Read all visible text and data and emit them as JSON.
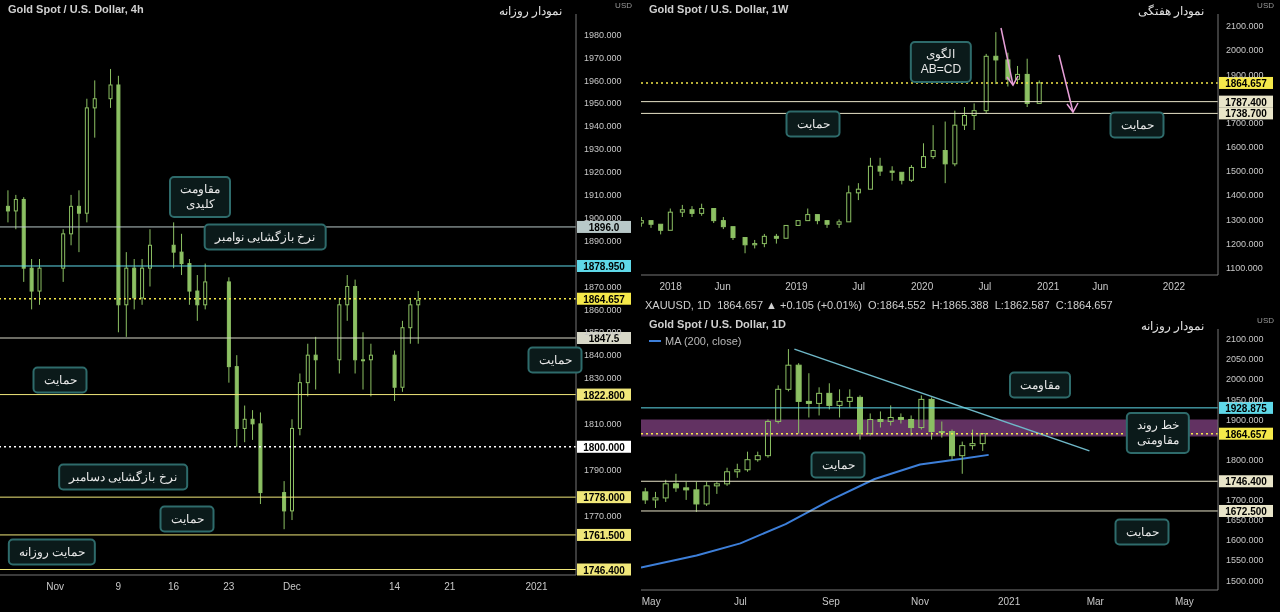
{
  "chart_data": [
    {
      "type": "candlestick",
      "title": "Gold Spot / U.S. Dollar, 4h",
      "ylabel": "USD",
      "xlim": [
        "2020-10-25",
        "2021-01-06"
      ],
      "ylim": [
        1744,
        1989
      ],
      "xticks": [
        {
          "value": "2020-11-01",
          "label": "Nov"
        },
        {
          "value": "2020-11-09",
          "label": "9"
        },
        {
          "value": "2020-11-16",
          "label": "16"
        },
        {
          "value": "2020-11-23",
          "label": "23"
        },
        {
          "value": "2020-12-01",
          "label": "Dec"
        },
        {
          "value": "2020-12-14",
          "label": "14"
        },
        {
          "value": "2020-12-21",
          "label": "21"
        },
        {
          "value": "2021",
          "label": "2021"
        }
      ],
      "yticks": [
        {
          "value": 1770,
          "label": "1770.000"
        },
        {
          "value": 1790,
          "label": "1790.000"
        },
        {
          "value": 1810,
          "label": "1810.000"
        },
        {
          "value": 1830,
          "label": "1830.000"
        },
        {
          "value": 1840,
          "label": "1840.000"
        },
        {
          "value": 1850,
          "label": "1850.000"
        },
        {
          "value": 1860,
          "label": "1860.000"
        },
        {
          "value": 1870,
          "label": "1870.000"
        },
        {
          "value": 1890,
          "label": "1890.000"
        },
        {
          "value": 1900,
          "label": "1900.000"
        },
        {
          "value": 1910,
          "label": "1910.000"
        },
        {
          "value": 1920,
          "label": "1920.000"
        },
        {
          "value": 1930,
          "label": "1930.000"
        },
        {
          "value": 1940,
          "label": "1940.000"
        },
        {
          "value": 1950,
          "label": "1950.000"
        },
        {
          "value": 1960,
          "label": "1960.000"
        },
        {
          "value": 1970,
          "label": "1970.000"
        },
        {
          "value": 1980,
          "label": "1980.000"
        }
      ],
      "series": [
        {
          "color": "#8cc063",
          "x": [
            "2020-10-26",
            "2020-10-27",
            "2020-10-28",
            "2020-10-29",
            "2020-10-30",
            "2020-11-02",
            "2020-11-03",
            "2020-11-04",
            "2020-11-05",
            "2020-11-06",
            "2020-11-08",
            "2020-11-09",
            "2020-11-10",
            "2020-11-11",
            "2020-11-12",
            "2020-11-13",
            "2020-11-16",
            "2020-11-17",
            "2020-11-18",
            "2020-11-19",
            "2020-11-20",
            "2020-11-23",
            "2020-11-24",
            "2020-11-25",
            "2020-11-26",
            "2020-11-27",
            "2020-11-30",
            "2020-12-01",
            "2020-12-02",
            "2020-12-03",
            "2020-12-04",
            "2020-12-07",
            "2020-12-08",
            "2020-12-09",
            "2020-12-10",
            "2020-12-11",
            "2020-12-14",
            "2020-12-15",
            "2020-12-16",
            "2020-12-17"
          ],
          "ohlc": [
            [
              1905,
              1912,
              1898,
              1903
            ],
            [
              1903,
              1910,
              1895,
              1908
            ],
            [
              1908,
              1909,
              1872,
              1878
            ],
            [
              1878,
              1882,
              1860,
              1868
            ],
            [
              1868,
              1882,
              1862,
              1878
            ],
            [
              1878,
              1895,
              1872,
              1893
            ],
            [
              1893,
              1910,
              1888,
              1905
            ],
            [
              1905,
              1912,
              1885,
              1902
            ],
            [
              1902,
              1952,
              1898,
              1948
            ],
            [
              1948,
              1960,
              1935,
              1952
            ],
            [
              1952,
              1965,
              1948,
              1958
            ],
            [
              1958,
              1962,
              1850,
              1862
            ],
            [
              1862,
              1885,
              1848,
              1878
            ],
            [
              1878,
              1882,
              1860,
              1865
            ],
            [
              1865,
              1882,
              1862,
              1878
            ],
            [
              1878,
              1895,
              1870,
              1888
            ],
            [
              1888,
              1898,
              1878,
              1885
            ],
            [
              1885,
              1893,
              1875,
              1880
            ],
            [
              1880,
              1882,
              1862,
              1868
            ],
            [
              1868,
              1875,
              1855,
              1862
            ],
            [
              1862,
              1880,
              1860,
              1872
            ],
            [
              1872,
              1874,
              1828,
              1835
            ],
            [
              1835,
              1840,
              1800,
              1808
            ],
            [
              1808,
              1818,
              1802,
              1812
            ],
            [
              1812,
              1816,
              1803,
              1810
            ],
            [
              1810,
              1815,
              1775,
              1780
            ],
            [
              1780,
              1785,
              1764,
              1772
            ],
            [
              1772,
              1812,
              1768,
              1808
            ],
            [
              1808,
              1832,
              1805,
              1828
            ],
            [
              1828,
              1845,
              1822,
              1840
            ],
            [
              1840,
              1848,
              1825,
              1838
            ],
            [
              1838,
              1865,
              1832,
              1862
            ],
            [
              1862,
              1875,
              1855,
              1870
            ],
            [
              1870,
              1873,
              1832,
              1838
            ],
            [
              1838,
              1850,
              1825,
              1838
            ],
            [
              1838,
              1845,
              1822,
              1840
            ],
            [
              1840,
              1842,
              1820,
              1826
            ],
            [
              1826,
              1855,
              1824,
              1852
            ],
            [
              1852,
              1865,
              1845,
              1862
            ],
            [
              1862,
              1868,
              1845,
              1864
            ]
          ]
        }
      ],
      "ref_lines": [
        {
          "axis": "y",
          "value": 1896.0,
          "label": "1896.0",
          "color": "#b8c8c8"
        },
        {
          "axis": "y",
          "value": 1878.95,
          "label": "1878.950",
          "color": "#5fd8e8"
        },
        {
          "axis": "y",
          "value": 1864.657,
          "label": "1864.657",
          "color": "#f5e94a",
          "line_style": "dotted"
        },
        {
          "axis": "y",
          "value": 1847.5,
          "label": "1847.5",
          "color": "#d8d8c8"
        },
        {
          "axis": "y",
          "value": 1822.8,
          "label": "1822.800",
          "color": "#f0e77a"
        },
        {
          "axis": "y",
          "value": 1800,
          "label": "1800.000",
          "color": "#ffffff",
          "line_style": "dotted"
        },
        {
          "axis": "y",
          "value": 1778,
          "label": "1778.000",
          "color": "#f0e77a"
        },
        {
          "axis": "y",
          "value": 1761.5,
          "label": "1761.500",
          "color": "#f0e77a"
        },
        {
          "axis": "y",
          "value": 1746.4,
          "label": "1746.400",
          "color": "#f0e77a"
        }
      ],
      "annotations": [
        "نمودار روزانه",
        "مقاومت\nکلیدی",
        "نرخ بازگشایی نوامبر",
        "حمایت",
        "حمایت",
        "نرخ بازگشایی دسامبر",
        "حمایت",
        "حمایت روزانه"
      ]
    },
    {
      "type": "candlestick",
      "title": "Gold Spot / U.S. Dollar, 1W",
      "ylabel": "USD",
      "xlim": [
        "2017-10-07",
        "2022-05-09"
      ],
      "ylim": [
        1070,
        2150
      ],
      "xticks": [
        {
          "value": "2018",
          "label": "2018"
        },
        {
          "value": "2018-06-01",
          "label": "Jun"
        },
        {
          "value": "2019",
          "label": "2019"
        },
        {
          "value": "2019-07-01",
          "label": "Jul"
        },
        {
          "value": "2020",
          "label": "2020"
        },
        {
          "value": "2020-07-01",
          "label": "Jul"
        },
        {
          "value": "2021",
          "label": "2021"
        },
        {
          "value": "2021-06-01",
          "label": "Jun"
        },
        {
          "value": "2022",
          "label": "2022"
        }
      ],
      "yticks": [
        {
          "value": 1100,
          "label": "1100.000"
        },
        {
          "value": 1200,
          "label": "1200.000"
        },
        {
          "value": 1300,
          "label": "1300.000"
        },
        {
          "value": 1400,
          "label": "1400.000"
        },
        {
          "value": 1500,
          "label": "1500.000"
        },
        {
          "value": 1600,
          "label": "1600.000"
        },
        {
          "value": 1700,
          "label": "1700.000"
        },
        {
          "value": 1900,
          "label": "1900.000"
        },
        {
          "value": 2000,
          "label": "2000.000"
        },
        {
          "value": 2100,
          "label": "2100.000"
        }
      ],
      "series": [
        {
          "color": "#8cc063",
          "x": [
            "2017-10-09",
            "2017-11-06",
            "2017-12-04",
            "2018-01-01",
            "2018-02-05",
            "2018-03-05",
            "2018-04-02",
            "2018-05-07",
            "2018-06-04",
            "2018-07-02",
            "2018-08-06",
            "2018-09-03",
            "2018-10-01",
            "2018-11-05",
            "2018-12-03",
            "2019-01-07",
            "2019-02-04",
            "2019-03-04",
            "2019-04-01",
            "2019-05-06",
            "2019-06-03",
            "2019-07-01",
            "2019-08-05",
            "2019-09-02",
            "2019-10-07",
            "2019-11-04",
            "2019-12-02",
            "2020-01-06",
            "2020-02-03",
            "2020-03-09",
            "2020-04-06",
            "2020-05-04",
            "2020-06-01",
            "2020-07-06",
            "2020-08-03",
            "2020-09-07",
            "2020-10-05",
            "2020-11-02",
            "2020-12-07"
          ],
          "ohlc": [
            [
              1285,
              1310,
              1270,
              1295
            ],
            [
              1295,
              1300,
              1265,
              1280
            ],
            [
              1280,
              1285,
              1238,
              1255
            ],
            [
              1255,
              1345,
              1250,
              1330
            ],
            [
              1330,
              1360,
              1310,
              1340
            ],
            [
              1340,
              1355,
              1310,
              1325
            ],
            [
              1325,
              1365,
              1315,
              1345
            ],
            [
              1345,
              1350,
              1285,
              1295
            ],
            [
              1295,
              1310,
              1260,
              1270
            ],
            [
              1270,
              1275,
              1215,
              1225
            ],
            [
              1225,
              1230,
              1160,
              1195
            ],
            [
              1195,
              1215,
              1180,
              1200
            ],
            [
              1200,
              1240,
              1185,
              1230
            ],
            [
              1230,
              1240,
              1200,
              1222
            ],
            [
              1222,
              1280,
              1220,
              1275
            ],
            [
              1275,
              1300,
              1270,
              1295
            ],
            [
              1295,
              1345,
              1290,
              1320
            ],
            [
              1320,
              1325,
              1280,
              1295
            ],
            [
              1295,
              1300,
              1265,
              1280
            ],
            [
              1280,
              1300,
              1265,
              1290
            ],
            [
              1290,
              1440,
              1285,
              1410
            ],
            [
              1410,
              1450,
              1380,
              1425
            ],
            [
              1425,
              1555,
              1420,
              1520
            ],
            [
              1520,
              1555,
              1480,
              1500
            ],
            [
              1500,
              1520,
              1460,
              1495
            ],
            [
              1495,
              1500,
              1445,
              1462
            ],
            [
              1462,
              1525,
              1455,
              1515
            ],
            [
              1515,
              1615,
              1510,
              1560
            ],
            [
              1560,
              1690,
              1550,
              1585
            ],
            [
              1585,
              1705,
              1450,
              1530
            ],
            [
              1530,
              1750,
              1520,
              1690
            ],
            [
              1690,
              1765,
              1670,
              1730
            ],
            [
              1730,
              1780,
              1670,
              1750
            ],
            [
              1750,
              1985,
              1740,
              1975
            ],
            [
              1975,
              2075,
              1860,
              1960
            ],
            [
              1960,
              1990,
              1850,
              1880
            ],
            [
              1880,
              1935,
              1860,
              1900
            ],
            [
              1900,
              1965,
              1765,
              1780
            ],
            [
              1780,
              1875,
              1775,
              1865
            ]
          ]
        }
      ],
      "ref_lines": [
        {
          "axis": "y",
          "value": 1864.657,
          "label": "1864.657",
          "color": "#f5e94a",
          "line_style": "dotted"
        },
        {
          "axis": "y",
          "value": 1787.4,
          "label": "1787.400",
          "color": "#e8e4c8"
        },
        {
          "axis": "y",
          "value": 1738.7,
          "label": "1738.700",
          "color": "#e8e4c8"
        }
      ],
      "annotations": [
        "نمودار هفتگی",
        "الگوی\nAB=CD",
        "حمایت",
        "حمایت"
      ]
    },
    {
      "type": "candlestick",
      "title": "Gold Spot / U.S. Dollar, 1D",
      "subtitle": "XAUUSD, 1D  1864.657 ▲ +0.105 (+0.01%)  O:1864.552  H:1865.388  L:1862.587  C:1864.657",
      "ylabel": "USD",
      "legend": "top left",
      "xlim": [
        "2020-04-24",
        "2021-05-24"
      ],
      "ylim": [
        1476,
        2125
      ],
      "xticks": [
        {
          "value": "2020-05-01",
          "label": "May"
        },
        {
          "value": "2020-07-01",
          "label": "Jul"
        },
        {
          "value": "2020-09-01",
          "label": "Sep"
        },
        {
          "value": "2020-11-01",
          "label": "Nov"
        },
        {
          "value": "2021",
          "label": "2021"
        },
        {
          "value": "2021-03-01",
          "label": "Mar"
        },
        {
          "value": "2021-05-01",
          "label": "May"
        }
      ],
      "yticks": [
        {
          "value": 1500,
          "label": "1500.000"
        },
        {
          "value": 1550,
          "label": "1550.000"
        },
        {
          "value": 1600,
          "label": "1600.000"
        },
        {
          "value": 1650,
          "label": "1650.000"
        },
        {
          "value": 1700,
          "label": "1700.000"
        },
        {
          "value": 1800,
          "label": "1800.000"
        },
        {
          "value": 1900,
          "label": "1900.000"
        },
        {
          "value": 1950,
          "label": "1950.000"
        },
        {
          "value": 2000,
          "label": "2000.000"
        },
        {
          "value": 2050,
          "label": "2050.000"
        },
        {
          "value": 2100,
          "label": "2100.000"
        }
      ],
      "bands": [
        {
          "axis": "y",
          "from": 1858,
          "to": 1900,
          "color": "#7a3f7a"
        }
      ],
      "series": [
        {
          "type": "line",
          "name": "MA (200, close)",
          "color": "#3d7fd9",
          "x": [
            "2020-04-24",
            "2020-06-01",
            "2020-07-01",
            "2020-08-01",
            "2020-09-01",
            "2020-10-01",
            "2020-11-01",
            "2020-12-01",
            "2020-12-18"
          ],
          "values": [
            1532,
            1562,
            1592,
            1640,
            1700,
            1752,
            1788,
            1803,
            1812
          ]
        },
        {
          "type": "line",
          "color": "#6fb8c8",
          "x": [
            "2020-08-07",
            "2021-02-25"
          ],
          "values": [
            2075,
            1822
          ]
        },
        {
          "color": "#8cc063",
          "x": [
            "2020-04-27",
            "2020-05-04",
            "2020-05-11",
            "2020-05-18",
            "2020-05-25",
            "2020-06-01",
            "2020-06-08",
            "2020-06-15",
            "2020-06-22",
            "2020-06-29",
            "2020-07-06",
            "2020-07-13",
            "2020-07-20",
            "2020-07-27",
            "2020-08-03",
            "2020-08-10",
            "2020-08-17",
            "2020-08-24",
            "2020-08-31",
            "2020-09-07",
            "2020-09-14",
            "2020-09-21",
            "2020-09-28",
            "2020-10-05",
            "2020-10-12",
            "2020-10-19",
            "2020-10-26",
            "2020-11-02",
            "2020-11-09",
            "2020-11-16",
            "2020-11-23",
            "2020-11-30",
            "2020-12-07",
            "2020-12-14"
          ],
          "ohlc": [
            [
              1720,
              1730,
              1690,
              1700
            ],
            [
              1700,
              1720,
              1680,
              1705
            ],
            [
              1705,
              1750,
              1695,
              1740
            ],
            [
              1740,
              1765,
              1720,
              1730
            ],
            [
              1730,
              1745,
              1700,
              1725
            ],
            [
              1725,
              1745,
              1670,
              1690
            ],
            [
              1690,
              1745,
              1685,
              1735
            ],
            [
              1735,
              1745,
              1715,
              1740
            ],
            [
              1740,
              1780,
              1735,
              1770
            ],
            [
              1770,
              1790,
              1755,
              1775
            ],
            [
              1775,
              1820,
              1770,
              1800
            ],
            [
              1800,
              1820,
              1795,
              1810
            ],
            [
              1810,
              1900,
              1805,
              1895
            ],
            [
              1895,
              1985,
              1890,
              1975
            ],
            [
              1975,
              2075,
              1970,
              2035
            ],
            [
              2035,
              2040,
              1865,
              1945
            ],
            [
              1945,
              2015,
              1905,
              1940
            ],
            [
              1940,
              1980,
              1910,
              1965
            ],
            [
              1965,
              1990,
              1925,
              1935
            ],
            [
              1935,
              1975,
              1905,
              1945
            ],
            [
              1945,
              1975,
              1930,
              1955
            ],
            [
              1955,
              1960,
              1850,
              1865
            ],
            [
              1865,
              1915,
              1860,
              1900
            ],
            [
              1900,
              1920,
              1880,
              1895
            ],
            [
              1895,
              1935,
              1885,
              1905
            ],
            [
              1905,
              1915,
              1890,
              1900
            ],
            [
              1900,
              1910,
              1860,
              1880
            ],
            [
              1880,
              1960,
              1875,
              1950
            ],
            [
              1950,
              1955,
              1850,
              1870
            ],
            [
              1870,
              1895,
              1855,
              1870
            ],
            [
              1870,
              1875,
              1800,
              1810
            ],
            [
              1810,
              1845,
              1765,
              1835
            ],
            [
              1835,
              1875,
              1825,
              1840
            ],
            [
              1840,
              1865,
              1822,
              1865
            ]
          ]
        }
      ],
      "ref_lines": [
        {
          "axis": "y",
          "value": 1928.875,
          "label": "1928.875",
          "color": "#5fd8e8"
        },
        {
          "axis": "y",
          "value": 1864.657,
          "label": "1864.657",
          "color": "#f5e94a",
          "line_style": "dotted"
        },
        {
          "axis": "y",
          "value": 1746.4,
          "label": "1746.400",
          "color": "#e8e4c8"
        },
        {
          "axis": "y",
          "value": 1672.5,
          "label": "1672.500",
          "color": "#e8e4c8"
        }
      ],
      "annotations": [
        "نمودار روزانه",
        "مقاومت",
        "حمایت",
        "حمایت",
        "خط روند\nمقاومتی"
      ]
    }
  ]
}
